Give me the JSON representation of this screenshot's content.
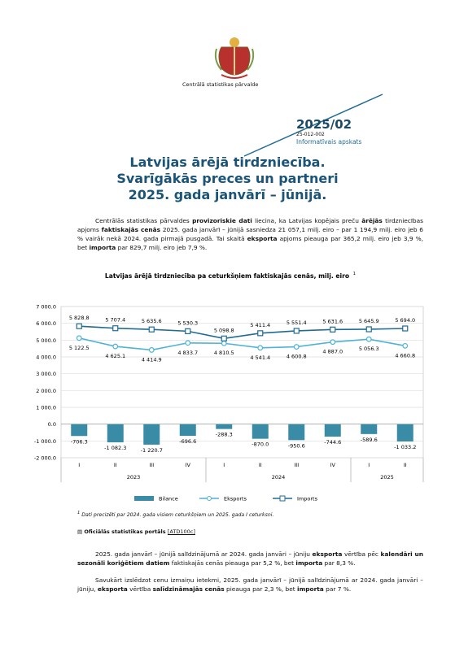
{
  "header": {
    "agency": "Centrālā statistikas pārvalde",
    "number": "2025/02",
    "code": "25-012-002",
    "kind": "Informatīvais apskats"
  },
  "title": [
    "Latvijas ārējā tirdzniecība.",
    "Svarīgākās preces un partneri",
    "2025. gada janvārī – jūnijā."
  ],
  "paragraphs": [
    {
      "runs": [
        {
          "text": "Centrālās statistikas pārvaldes "
        },
        {
          "text": "provizoriskie dati",
          "bold": true
        },
        {
          "text": " liecina, ka Latvijas kopējais preču "
        },
        {
          "text": "ārējās",
          "bold": true
        },
        {
          "text": " tirdzniecības apjoms "
        },
        {
          "text": "faktiskajās cenās",
          "bold": true
        },
        {
          "text": " 2025. gada janvārī – jūnijā sasniedza 21 057,1 milj. eiro – par 1 194,9 milj. eiro jeb 6 % vairāk nekā 2024. gada pirmajā pusgadā. Tai skaitā "
        },
        {
          "text": "eksporta",
          "bold": true
        },
        {
          "text": " apjoms pieauga par 365,2 milj. eiro jeb 3,9 %, bet "
        },
        {
          "text": "importa",
          "bold": true
        },
        {
          "text": " par 829,7 milj. eiro jeb 7,9 %."
        }
      ]
    },
    {
      "runs": [
        {
          "text": "2025. gada janvārī – jūnijā salīdzinājumā ar 2024. gada janvāri – jūniju "
        },
        {
          "text": "eksporta",
          "bold": true
        },
        {
          "text": " vērtība pēc "
        },
        {
          "text": "kalendāri un sezonāli koriģētiem datiem",
          "bold": true
        },
        {
          "text": " faktiskajās cenās pieauga par 5,2 %, bet "
        },
        {
          "text": "importa",
          "bold": true
        },
        {
          "text": " par 8,3 %."
        }
      ]
    },
    {
      "runs": [
        {
          "text": "Savukārt izslēdzot cenu izmaiņu ietekmi, 2025. gada janvārī – jūnijā salīdzinājumā ar 2024. gada janvāri – jūniju, "
        },
        {
          "text": "eksporta",
          "bold": true
        },
        {
          "text": " vērtība "
        },
        {
          "text": "salīdzināmajās cenās",
          "bold": true
        },
        {
          "text": " pieauga par 2,3 %, bet "
        },
        {
          "text": "importa",
          "bold": true
        },
        {
          "text": " par 7 %."
        }
      ]
    }
  ],
  "footnote": {
    "mark": "1",
    "text": "Dati precizēti par 2024. gada visiem ceturkšņiem un 2025. gada I ceturksni."
  },
  "source": {
    "text": "Oficiālās statistikas portāls",
    "link": "[ATD100c]"
  },
  "chart_data": {
    "type": "bar-line",
    "title": "Latvijas ārējā tirdzniecība pa ceturkšņiem faktiskajās cenās, milj. eiro",
    "title_note": "1",
    "categories": [
      "I",
      "II",
      "III",
      "IV",
      "I",
      "II",
      "III",
      "IV",
      "I",
      "II"
    ],
    "year_groups": [
      "2023",
      "2024",
      "2025"
    ],
    "group_sizes": [
      4,
      4,
      2
    ],
    "ylim": [
      -2000,
      7000
    ],
    "yticks": [
      {
        "value": -2000,
        "label": "-2 000.0"
      },
      {
        "value": -1000,
        "label": "-1 000.0"
      },
      {
        "value": 0,
        "label": "0.0"
      },
      {
        "value": 1000,
        "label": "1 000.0"
      },
      {
        "value": 2000,
        "label": "2 000.0"
      },
      {
        "value": 3000,
        "label": "3 000.0"
      },
      {
        "value": 4000,
        "label": "4 000.0"
      },
      {
        "value": 5000,
        "label": "5 000.0"
      },
      {
        "value": 6000,
        "label": "6 000.0"
      },
      {
        "value": 7000,
        "label": "7 000.0"
      }
    ],
    "grid": true,
    "series": [
      {
        "name": "Bilance",
        "kind": "bar",
        "color": "#3a8ba6",
        "values": [
          -706.3,
          -1082.3,
          -1220.7,
          -696.6,
          -288.3,
          -870.0,
          -950.6,
          -744.6,
          -589.6,
          -1033.2
        ],
        "value_labels": [
          "-706.3",
          "-1 082.3",
          "-1 220.7",
          "-696.6",
          "-288.3",
          "-870.0",
          "-950.6",
          "-744.6",
          "-589.6",
          "-1 033.2"
        ]
      },
      {
        "name": "Eksports",
        "kind": "line",
        "marker": "circle",
        "color": "#4fb3d9",
        "values": [
          5122.5,
          4625.1,
          4414.9,
          4833.7,
          4810.5,
          4541.4,
          4600.8,
          4887.0,
          5056.3,
          4660.8
        ],
        "value_labels": [
          "5 122.5",
          "4 625.1",
          "4 414.9",
          "4 833.7",
          "4 810.5",
          "4 541.4",
          "4 600.8",
          "4 887.0",
          "5 056.3",
          "4 660.8"
        ]
      },
      {
        "name": "Imports",
        "kind": "line",
        "marker": "square",
        "color": "#1f6b94",
        "values": [
          5828.8,
          5707.4,
          5635.6,
          5530.3,
          5098.8,
          5411.4,
          5551.4,
          5631.6,
          5645.9,
          5694.0
        ],
        "value_labels": [
          "5 828.8",
          "5 707.4",
          "5 635.6",
          "5 530.3",
          "5 098.8",
          "5 411.4",
          "5 551.4",
          "5 631.6",
          "5 645.9",
          "5 694.0"
        ]
      }
    ]
  }
}
